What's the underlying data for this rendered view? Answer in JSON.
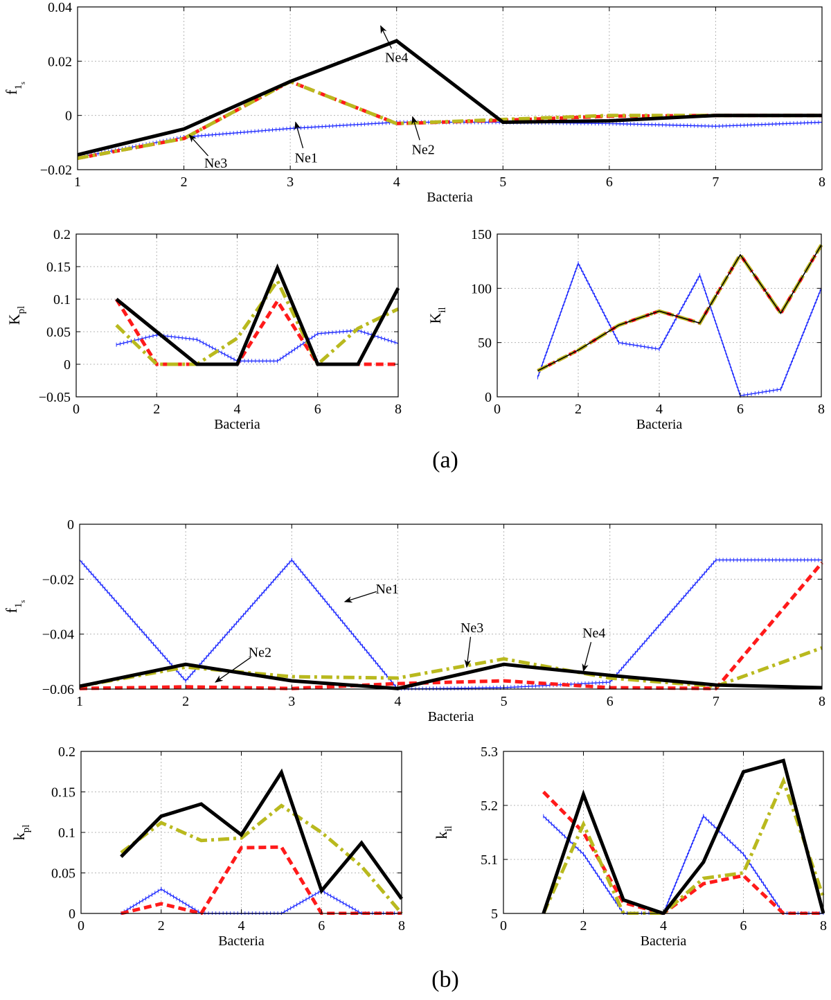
{
  "figure": {
    "panel_labels": [
      "(a)",
      "(b)"
    ],
    "colors": {
      "ne1": "#1f2bff",
      "ne2": "#ff1a1a",
      "ne3": "#b9b91e",
      "ne4": "#000000",
      "grid": "#b5b5b5"
    }
  },
  "chart_data": [
    {
      "id": "a_top",
      "type": "line",
      "xlabel": "Bacteria",
      "ylabel": "f",
      "ylabel_sub": "1",
      "ylabel_subsub": "s",
      "xlim": [
        1,
        8
      ],
      "ylim": [
        -0.02,
        0.04
      ],
      "xticks": [
        1,
        2,
        3,
        4,
        5,
        6,
        7,
        8
      ],
      "xtick_labels": [
        "1",
        "2",
        "3",
        "4",
        "5",
        "6",
        "7",
        "8"
      ],
      "yticks": [
        -0.02,
        0,
        0.02,
        0.04
      ],
      "ytick_labels": [
        "−0.02",
        "0",
        "0.02",
        "0.04"
      ],
      "grid": true,
      "series": [
        {
          "name": "Ne1",
          "style": "ne1",
          "x": [
            1,
            2,
            3,
            4,
            5,
            6,
            7,
            8
          ],
          "y": [
            -0.0155,
            -0.008,
            -0.0048,
            -0.0025,
            -0.0025,
            -0.003,
            -0.004,
            -0.0025
          ]
        },
        {
          "name": "Ne2",
          "style": "ne2",
          "x": [
            1,
            2,
            3,
            4,
            5,
            6,
            7,
            8
          ],
          "y": [
            -0.0158,
            -0.0085,
            0.0125,
            -0.003,
            -0.0018,
            -0.0003,
            0.0,
            0.0
          ]
        },
        {
          "name": "Ne3",
          "style": "ne3",
          "x": [
            1,
            2,
            3,
            4,
            5,
            6,
            7,
            8
          ],
          "y": [
            -0.0158,
            -0.0085,
            0.0125,
            -0.003,
            -0.0015,
            0.0,
            0.0,
            0.0
          ]
        },
        {
          "name": "Ne4",
          "style": "ne4",
          "x": [
            1,
            2,
            3,
            4,
            5,
            6,
            7,
            8
          ],
          "y": [
            -0.0145,
            -0.005,
            0.0125,
            0.0275,
            -0.0025,
            -0.002,
            0.0,
            0.0
          ]
        }
      ],
      "annotations": [
        {
          "text": "Ne4",
          "tx": 4.0,
          "ty": 0.0215,
          "ax": 3.85,
          "ay": 0.033
        },
        {
          "text": "Ne1",
          "tx": 3.15,
          "ty": -0.0155,
          "ax": 3.05,
          "ay": -0.0025
        },
        {
          "text": "Ne2",
          "tx": 4.25,
          "ty": -0.0125,
          "ax": 4.15,
          "ay": -0.0005
        },
        {
          "text": "Ne3",
          "tx": 2.3,
          "ty": -0.0175,
          "ax": 2.05,
          "ay": -0.0072
        }
      ]
    },
    {
      "id": "a_left",
      "type": "line",
      "xlabel": "Bacteria",
      "ylabel": "K",
      "ylabel_sub": "pl",
      "xlim": [
        0,
        8
      ],
      "ylim": [
        -0.05,
        0.2
      ],
      "xticks": [
        0,
        2,
        4,
        6,
        8
      ],
      "xtick_labels": [
        "0",
        "2",
        "4",
        "6",
        "8"
      ],
      "yticks": [
        -0.05,
        0,
        0.05,
        0.1,
        0.15,
        0.2
      ],
      "ytick_labels": [
        "−0.05",
        "0",
        "0.05",
        "0.1",
        "0.15",
        "0.2"
      ],
      "grid": true,
      "series": [
        {
          "name": "Ne1",
          "style": "ne1",
          "x": [
            1,
            2,
            3,
            4,
            5,
            6,
            7,
            8
          ],
          "y": [
            0.03,
            0.045,
            0.038,
            0.005,
            0.005,
            0.047,
            0.052,
            0.032
          ]
        },
        {
          "name": "Ne2",
          "style": "ne2",
          "x": [
            1,
            2,
            3,
            4,
            5,
            6,
            7,
            8
          ],
          "y": [
            0.1,
            0.0,
            0.0,
            0.0,
            0.097,
            0.0,
            0.0,
            0.0
          ]
        },
        {
          "name": "Ne3",
          "style": "ne3",
          "x": [
            1,
            2,
            3,
            4,
            5,
            6,
            7,
            8
          ],
          "y": [
            0.06,
            0.0,
            0.0,
            0.04,
            0.128,
            0.0,
            0.055,
            0.085
          ]
        },
        {
          "name": "Ne4",
          "style": "ne4",
          "x": [
            1,
            3,
            4,
            5,
            6,
            7,
            8
          ],
          "y": [
            0.1,
            0.0,
            0.0,
            0.148,
            0.0,
            0.0,
            0.117
          ]
        }
      ]
    },
    {
      "id": "a_right",
      "type": "line",
      "xlabel": "Bacteria",
      "ylabel": "K",
      "ylabel_sub": "il",
      "xlim": [
        0,
        8
      ],
      "ylim": [
        0,
        150
      ],
      "xticks": [
        0,
        2,
        4,
        6,
        8
      ],
      "xtick_labels": [
        "0",
        "2",
        "4",
        "6",
        "8"
      ],
      "yticks": [
        0,
        50,
        100,
        150
      ],
      "ytick_labels": [
        "0",
        "50",
        "100",
        "150"
      ],
      "grid": true,
      "series": [
        {
          "name": "Ne1",
          "style": "ne1",
          "x": [
            1,
            2,
            3,
            4,
            5,
            6,
            7,
            8
          ],
          "y": [
            18,
            123,
            50,
            44,
            112,
            1,
            7,
            100
          ]
        },
        {
          "name": "Ne2",
          "style": "ne2",
          "x": [
            1,
            2,
            3,
            4,
            5,
            6,
            7,
            8
          ],
          "y": [
            24,
            43,
            66,
            79,
            68,
            131,
            77,
            140
          ]
        },
        {
          "name": "Ne3",
          "style": "ne3",
          "x": [
            1,
            2,
            3,
            4,
            5,
            6,
            7,
            8
          ],
          "y": [
            24,
            43,
            66,
            79,
            68,
            131,
            77,
            140
          ]
        },
        {
          "name": "Ne4",
          "style": "ne4thin",
          "x": [
            1,
            2,
            3,
            4,
            5,
            6,
            7,
            8
          ],
          "y": [
            24,
            43,
            66,
            79,
            68,
            131,
            77,
            140
          ]
        }
      ]
    },
    {
      "id": "b_top",
      "type": "line",
      "xlabel": "Bacteria",
      "ylabel": "f",
      "ylabel_sub": "1",
      "ylabel_subsub": "s",
      "xlim": [
        1,
        8
      ],
      "ylim": [
        -0.06,
        0
      ],
      "xticks": [
        1,
        2,
        3,
        4,
        5,
        6,
        7,
        8
      ],
      "xtick_labels": [
        "1",
        "2",
        "3",
        "4",
        "5",
        "6",
        "7",
        "8"
      ],
      "yticks": [
        -0.06,
        -0.04,
        -0.02,
        0
      ],
      "ytick_labels": [
        "−0.06",
        "−0.04",
        "−0.02",
        "0"
      ],
      "grid": true,
      "series": [
        {
          "name": "Ne1",
          "style": "ne1",
          "x": [
            1,
            2,
            3,
            4,
            5,
            6,
            7,
            8
          ],
          "y": [
            -0.013,
            -0.057,
            -0.013,
            -0.06,
            -0.0595,
            -0.0575,
            -0.013,
            -0.013
          ]
        },
        {
          "name": "Ne2",
          "style": "ne2",
          "x": [
            1,
            2,
            3,
            4,
            5,
            6,
            7,
            8
          ],
          "y": [
            -0.0598,
            -0.0592,
            -0.0598,
            -0.058,
            -0.057,
            -0.0595,
            -0.0598,
            -0.014
          ]
        },
        {
          "name": "Ne3",
          "style": "ne3",
          "x": [
            1,
            2,
            3,
            4,
            5,
            6,
            7,
            8
          ],
          "y": [
            -0.059,
            -0.052,
            -0.0555,
            -0.056,
            -0.049,
            -0.056,
            -0.059,
            -0.045
          ]
        },
        {
          "name": "Ne4",
          "style": "ne4",
          "x": [
            1,
            2,
            3,
            4,
            5,
            6,
            7,
            8
          ],
          "y": [
            -0.059,
            -0.051,
            -0.057,
            -0.0598,
            -0.051,
            -0.055,
            -0.0585,
            -0.0595
          ]
        }
      ],
      "annotations": [
        {
          "text": "Ne1",
          "tx": 3.9,
          "ty": -0.0235,
          "ax": 3.5,
          "ay": -0.0282
        },
        {
          "text": "Ne2",
          "tx": 2.7,
          "ty": -0.0465,
          "ax": 2.28,
          "ay": -0.0575
        },
        {
          "text": "Ne3",
          "tx": 4.7,
          "ty": -0.0375,
          "ax": 4.65,
          "ay": -0.052
        },
        {
          "text": "Ne4",
          "tx": 5.85,
          "ty": -0.0395,
          "ax": 5.75,
          "ay": -0.0535
        }
      ]
    },
    {
      "id": "b_left",
      "type": "line",
      "xlabel": "Bacteria",
      "ylabel": "k",
      "ylabel_sub": "pl",
      "xlim": [
        0,
        8
      ],
      "ylim": [
        0,
        0.2
      ],
      "xticks": [
        0,
        2,
        4,
        6,
        8
      ],
      "xtick_labels": [
        "0",
        "2",
        "4",
        "6",
        "8"
      ],
      "yticks": [
        0,
        0.05,
        0.1,
        0.15,
        0.2
      ],
      "ytick_labels": [
        "0",
        "0.05",
        "0.1",
        "0.15",
        "0.2"
      ],
      "grid": true,
      "series": [
        {
          "name": "Ne1",
          "style": "ne1",
          "x": [
            1,
            2,
            3,
            4,
            5,
            6,
            7,
            8
          ],
          "y": [
            0.0,
            0.03,
            0.0,
            0.0,
            0.0,
            0.028,
            0.0,
            0.0
          ]
        },
        {
          "name": "Ne2",
          "style": "ne2",
          "x": [
            1,
            2,
            3,
            4,
            5,
            6,
            7,
            8
          ],
          "y": [
            0.0,
            0.012,
            0.0,
            0.081,
            0.082,
            0.0,
            0.0,
            0.0
          ]
        },
        {
          "name": "Ne3",
          "style": "ne3",
          "x": [
            1,
            2,
            3,
            4,
            5,
            6,
            7,
            8
          ],
          "y": [
            0.075,
            0.112,
            0.09,
            0.093,
            0.133,
            0.1,
            0.058,
            0.0
          ]
        },
        {
          "name": "Ne4",
          "style": "ne4",
          "x": [
            1,
            2,
            3,
            4,
            5,
            6,
            7,
            8
          ],
          "y": [
            0.07,
            0.12,
            0.135,
            0.097,
            0.174,
            0.028,
            0.087,
            0.018
          ]
        }
      ]
    },
    {
      "id": "b_right",
      "type": "line",
      "xlabel": "Bacteria",
      "ylabel": "k",
      "ylabel_sub": "il",
      "xlim": [
        0,
        8
      ],
      "ylim": [
        5,
        5.3
      ],
      "xticks": [
        0,
        2,
        4,
        6,
        8
      ],
      "xtick_labels": [
        "0",
        "2",
        "4",
        "6",
        "8"
      ],
      "yticks": [
        5,
        5.1,
        5.2,
        5.3
      ],
      "ytick_labels": [
        "5",
        "5.1",
        "5.2",
        "5.3"
      ],
      "grid": true,
      "series": [
        {
          "name": "Ne1",
          "style": "ne1",
          "x": [
            1,
            2,
            3,
            4,
            5,
            6,
            7,
            8
          ],
          "y": [
            5.18,
            5.11,
            5.0,
            5.0,
            5.18,
            5.11,
            5.0,
            5.0
          ]
        },
        {
          "name": "Ne2",
          "style": "ne2",
          "x": [
            1,
            2,
            3,
            4,
            5,
            6,
            7,
            8
          ],
          "y": [
            5.225,
            5.15,
            5.02,
            5.0,
            5.055,
            5.07,
            5.0,
            5.0
          ]
        },
        {
          "name": "Ne3",
          "style": "ne3",
          "x": [
            1,
            2,
            3,
            4,
            5,
            6,
            7,
            8
          ],
          "y": [
            5.0,
            5.165,
            5.0,
            5.0,
            5.065,
            5.075,
            5.245,
            5.03
          ]
        },
        {
          "name": "Ne4",
          "style": "ne4",
          "x": [
            1,
            2,
            3,
            4,
            5,
            6,
            7,
            8
          ],
          "y": [
            5.0,
            5.22,
            5.025,
            5.0,
            5.095,
            5.262,
            5.283,
            5.0
          ]
        }
      ]
    }
  ]
}
